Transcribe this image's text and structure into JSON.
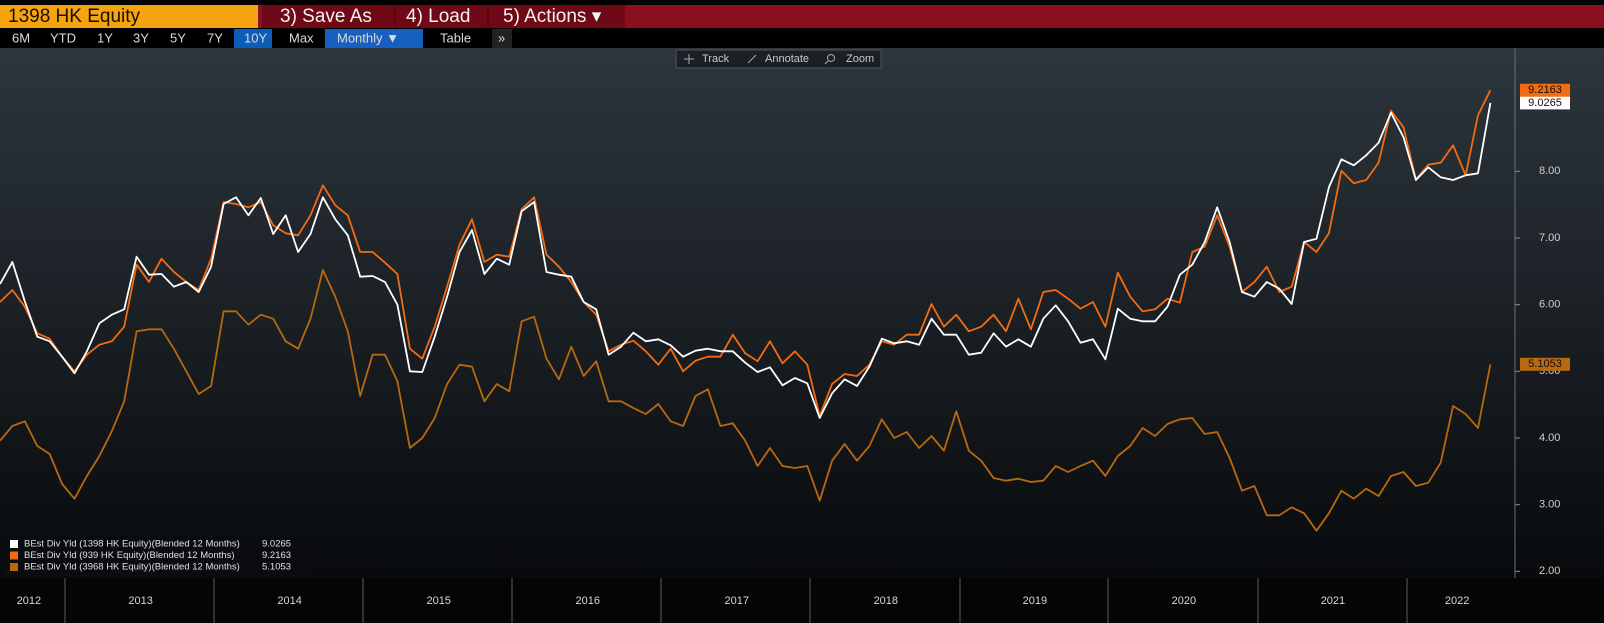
{
  "toolbar": {
    "ticker": "1398 HK Equity",
    "actions": [
      "3) Save As",
      "4) Load",
      "5) Actions ▾"
    ],
    "ranges": [
      "6M",
      "YTD",
      "1Y",
      "3Y",
      "5Y",
      "7Y",
      "10Y",
      "Max"
    ],
    "frequency": "Monthly ▼",
    "view": "Table",
    "more": "»",
    "chart_tools": [
      "Track",
      "Annotate",
      "Zoom"
    ]
  },
  "chart_data": {
    "type": "line",
    "categories": [
      null,
      null,
      "2012",
      null,
      null,
      null,
      null,
      null,
      null,
      null,
      null,
      "2013",
      null,
      null,
      null,
      null,
      null,
      null,
      null,
      null,
      null,
      null,
      null,
      "2014",
      null,
      null,
      null,
      null,
      null,
      null,
      null,
      null,
      null,
      null,
      null,
      "2015",
      null,
      null,
      null,
      null,
      null,
      null,
      null,
      null,
      null,
      null,
      null,
      "2016",
      null,
      null,
      null,
      null,
      null,
      null,
      null,
      null,
      null,
      null,
      null,
      "2017",
      null,
      null,
      null,
      null,
      null,
      null,
      null,
      null,
      null,
      null,
      null,
      "2018",
      null,
      null,
      null,
      null,
      null,
      null,
      null,
      null,
      null,
      null,
      null,
      "2019",
      null,
      null,
      null,
      null,
      null,
      null,
      null,
      null,
      null,
      null,
      null,
      "2020",
      null,
      null,
      null,
      null,
      null,
      null,
      null,
      null,
      null,
      null,
      null,
      "2021",
      null,
      null,
      null,
      null,
      null,
      null,
      null,
      null,
      null,
      "2022",
      null,
      null,
      null
    ],
    "series": [
      {
        "name": "BEst Div Yld (1398 HK Equity)(Blended 12 Months)",
        "color": "#ffffff",
        "values": [
          6.31,
          6.64,
          6.05,
          5.52,
          5.45,
          5.22,
          4.97,
          5.3,
          5.72,
          5.85,
          5.93,
          6.72,
          6.45,
          6.46,
          6.27,
          6.34,
          6.19,
          6.57,
          7.51,
          7.61,
          7.34,
          7.6,
          7.06,
          7.34,
          6.79,
          7.06,
          7.61,
          7.28,
          7.04,
          6.42,
          6.43,
          6.34,
          6.0,
          5.0,
          4.99,
          5.52,
          6.12,
          6.79,
          7.12,
          6.46,
          6.69,
          6.6,
          7.4,
          7.54,
          6.49,
          6.45,
          6.42,
          6.04,
          5.93,
          5.25,
          5.37,
          5.58,
          5.45,
          5.48,
          5.39,
          5.22,
          5.31,
          5.34,
          5.3,
          5.3,
          5.13,
          4.99,
          5.06,
          4.79,
          4.9,
          4.82,
          4.3,
          4.67,
          4.88,
          4.78,
          5.07,
          5.49,
          5.42,
          5.45,
          5.4,
          5.79,
          5.55,
          5.55,
          5.25,
          5.28,
          5.57,
          5.37,
          5.48,
          5.37,
          5.79,
          5.99,
          5.75,
          5.43,
          5.48,
          5.18,
          5.94,
          5.79,
          5.75,
          5.75,
          5.97,
          6.45,
          6.6,
          6.94,
          7.46,
          6.94,
          6.19,
          6.12,
          6.34,
          6.24,
          6.01,
          6.94,
          6.99,
          7.76,
          8.18,
          8.09,
          8.24,
          8.43,
          8.88,
          8.51,
          7.87,
          8.06,
          7.91,
          7.87,
          7.94,
          7.97,
          9.0265
        ]
      },
      {
        "name": "BEst Div Yld (939 HK Equity)(Blended 12 Months)",
        "color": "#f26b12",
        "values": [
          6.04,
          6.22,
          5.97,
          5.57,
          5.49,
          5.22,
          5.0,
          5.25,
          5.4,
          5.45,
          5.67,
          6.6,
          6.34,
          6.69,
          6.49,
          6.34,
          6.22,
          6.69,
          7.54,
          7.51,
          7.46,
          7.54,
          7.19,
          7.07,
          7.04,
          7.34,
          7.79,
          7.49,
          7.34,
          6.79,
          6.79,
          6.63,
          6.46,
          5.34,
          5.19,
          5.67,
          6.27,
          6.9,
          7.28,
          6.64,
          6.75,
          6.72,
          7.43,
          7.61,
          6.75,
          6.57,
          6.34,
          6.04,
          5.85,
          5.3,
          5.4,
          5.46,
          5.3,
          5.1,
          5.34,
          5.0,
          5.16,
          5.22,
          5.22,
          5.55,
          5.27,
          5.15,
          5.45,
          5.12,
          5.3,
          5.1,
          4.33,
          4.81,
          4.96,
          4.93,
          5.1,
          5.45,
          5.4,
          5.55,
          5.55,
          6.01,
          5.67,
          5.85,
          5.6,
          5.67,
          5.85,
          5.6,
          6.09,
          5.63,
          6.19,
          6.22,
          6.09,
          5.94,
          6.04,
          5.67,
          6.48,
          6.12,
          5.9,
          5.93,
          6.09,
          6.03,
          6.79,
          6.87,
          7.34,
          6.87,
          6.19,
          6.34,
          6.57,
          6.19,
          6.27,
          6.94,
          6.79,
          7.07,
          8.01,
          7.82,
          7.87,
          8.13,
          8.91,
          8.66,
          7.88,
          8.1,
          8.13,
          8.39,
          7.94,
          8.84,
          9.2163
        ]
      },
      {
        "name": "BEst Div Yld (3968 HK Equity)(Blended 12 Months)",
        "color": "#b8680f",
        "values": [
          3.96,
          4.18,
          4.25,
          3.88,
          3.76,
          3.31,
          3.09,
          3.43,
          3.73,
          4.1,
          4.55,
          5.6,
          5.63,
          5.63,
          5.34,
          5.0,
          4.66,
          4.78,
          5.9,
          5.9,
          5.7,
          5.85,
          5.79,
          5.45,
          5.34,
          5.79,
          6.52,
          6.12,
          5.6,
          4.63,
          5.25,
          5.25,
          4.85,
          3.85,
          4.0,
          4.3,
          4.81,
          5.1,
          5.07,
          4.55,
          4.81,
          4.7,
          5.75,
          5.82,
          5.19,
          4.88,
          5.37,
          4.93,
          5.15,
          4.55,
          4.55,
          4.45,
          4.36,
          4.51,
          4.25,
          4.18,
          4.63,
          4.73,
          4.18,
          4.22,
          3.96,
          3.58,
          3.85,
          3.58,
          3.55,
          3.58,
          3.06,
          3.66,
          3.91,
          3.66,
          3.88,
          4.28,
          4.0,
          4.09,
          3.85,
          4.03,
          3.81,
          4.4,
          3.81,
          3.66,
          3.4,
          3.36,
          3.39,
          3.34,
          3.36,
          3.58,
          3.49,
          3.58,
          3.66,
          3.43,
          3.73,
          3.88,
          4.15,
          4.03,
          4.21,
          4.28,
          4.3,
          4.06,
          4.09,
          3.7,
          3.21,
          3.28,
          2.84,
          2.84,
          2.96,
          2.87,
          2.61,
          2.87,
          3.21,
          3.09,
          3.24,
          3.13,
          3.43,
          3.49,
          3.28,
          3.33,
          3.63,
          4.48,
          4.36,
          4.15,
          5.1053
        ]
      }
    ],
    "ylim": [
      1.9,
      9.85
    ],
    "yticks": [
      {
        "value": 2,
        "label": "2.00"
      },
      {
        "value": 3,
        "label": "3.00"
      },
      {
        "value": 4,
        "label": "4.00"
      },
      {
        "value": 5,
        "label": "5.00"
      },
      {
        "value": 6,
        "label": "6.00"
      },
      {
        "value": 7,
        "label": "7.00"
      },
      {
        "value": 8,
        "label": "8.00"
      }
    ],
    "legend": "bottom-left",
    "last_value_labels": true
  }
}
